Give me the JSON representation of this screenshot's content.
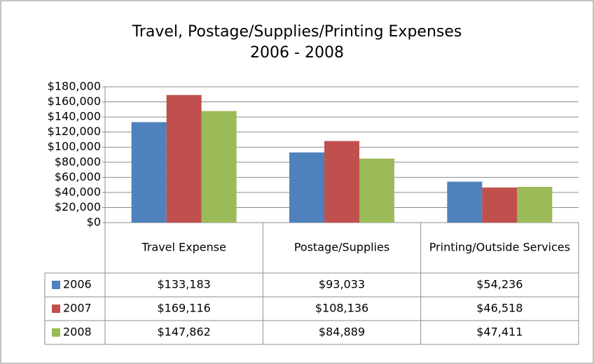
{
  "chart_data": {
    "type": "bar",
    "title": "Travel, Postage/Supplies/Printing Expenses",
    "subtitle": "2006 - 2008",
    "categories": [
      "Travel Expense",
      "Postage/Supplies",
      "Printing/Outside Services"
    ],
    "series": [
      {
        "name": "2006",
        "color": "#4f81bd",
        "values": [
          133183,
          93033,
          54236
        ],
        "value_labels": [
          "$133,183",
          "$93,033",
          "$54,236"
        ]
      },
      {
        "name": "2007",
        "color": "#c0504d",
        "values": [
          169116,
          108136,
          46518
        ],
        "value_labels": [
          "$169,116",
          "$108,136",
          "$46,518"
        ]
      },
      {
        "name": "2008",
        "color": "#9bbb59",
        "values": [
          147862,
          84889,
          47411
        ],
        "value_labels": [
          "$147,862",
          "$84,889",
          "$47,411"
        ]
      }
    ],
    "ylim": [
      0,
      180000
    ],
    "yticks": [
      {
        "value": 0,
        "label": "$0"
      },
      {
        "value": 20000,
        "label": "$20,000"
      },
      {
        "value": 40000,
        "label": "$40,000"
      },
      {
        "value": 60000,
        "label": "$60,000"
      },
      {
        "value": 80000,
        "label": "$80,000"
      },
      {
        "value": 100000,
        "label": "$100,000"
      },
      {
        "value": 120000,
        "label": "$120,000"
      },
      {
        "value": 140000,
        "label": "$140,000"
      },
      {
        "value": 160000,
        "label": "$160,000"
      },
      {
        "value": 180000,
        "label": "$180,000"
      }
    ],
    "grid": true
  }
}
